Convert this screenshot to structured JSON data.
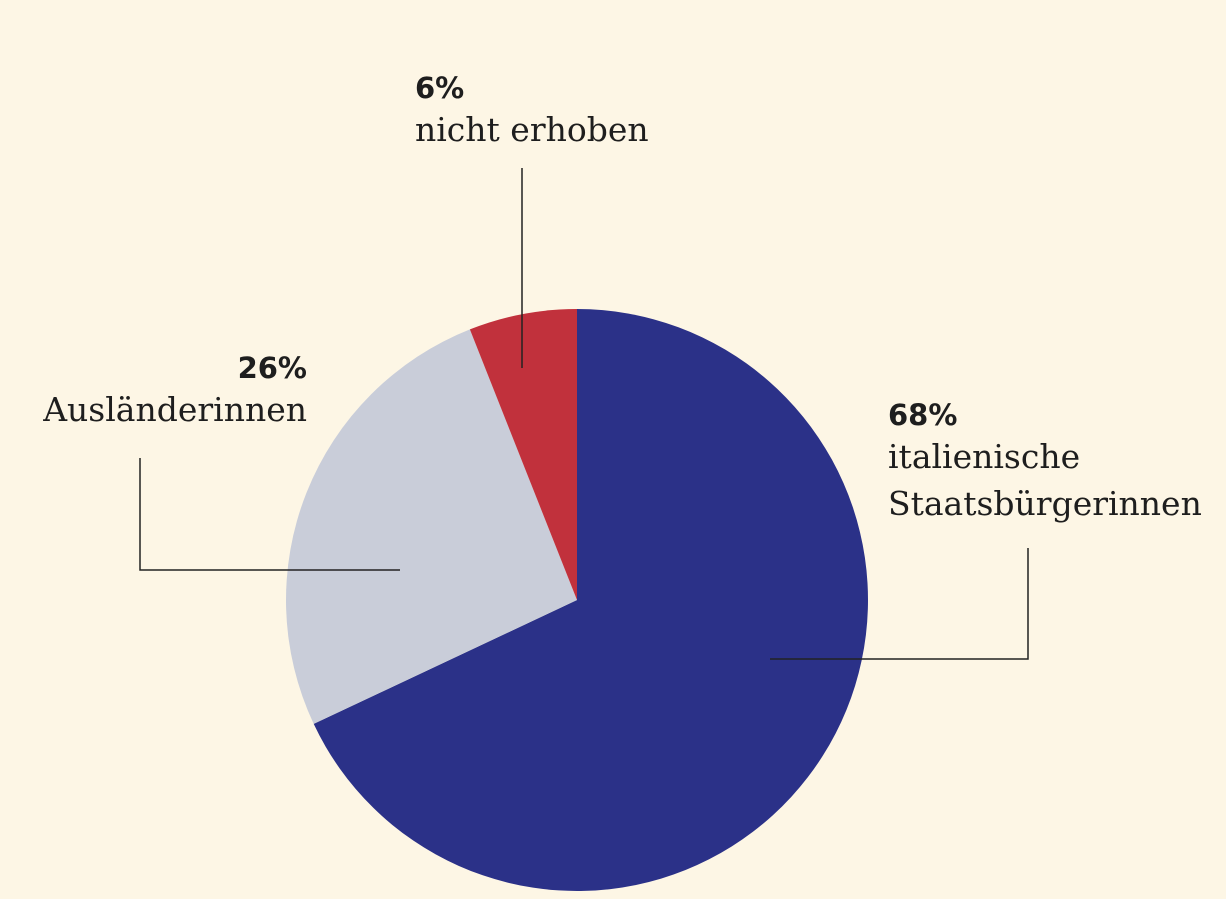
{
  "chart_data": {
    "type": "pie",
    "categories": [
      "italienische Staatsbürgerinnen",
      "Ausländerinnen",
      "nicht erhoben"
    ],
    "values": [
      68,
      26,
      6
    ],
    "value_labels": [
      "68%",
      "26%",
      "6%"
    ],
    "colors": [
      "#2b3188",
      "#c9cdd9",
      "#c1313c"
    ]
  }
}
